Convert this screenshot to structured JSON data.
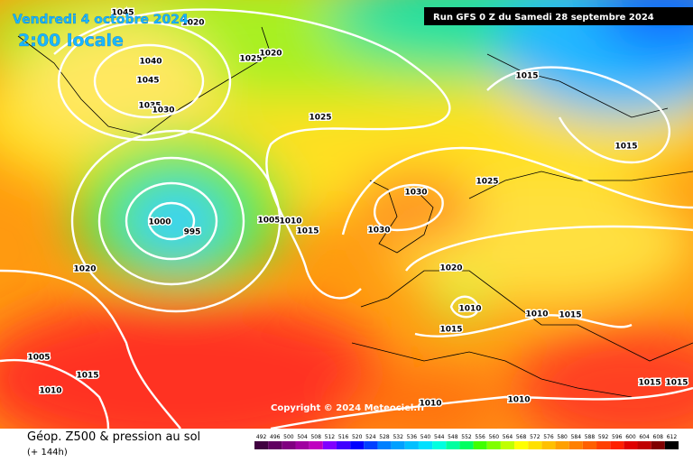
{
  "header": {
    "valid_date": "Vendredi 4 octobre 2024",
    "local_time": "2:00 locale",
    "run": "Run GFS 0 Z du Samedi 28 septembre 2024"
  },
  "isobar_labels": [
    1045,
    1020,
    1025,
    1020,
    1040,
    1045,
    1035,
    1030,
    1025,
    1015,
    1015,
    1030,
    1025,
    1000,
    995,
    1005,
    1010,
    1015,
    1030,
    1020,
    1020,
    1010,
    1010,
    1015,
    1015,
    1005,
    1015,
    1010,
    1010,
    1010,
    1015,
    1015
  ],
  "copyright": "Copyright © 2024 Meteociel.fr",
  "footer": {
    "title": "Géop. Z500 & pression au sol",
    "lead": "(+ 144h)"
  },
  "legend": {
    "labels": [
      492,
      496,
      500,
      504,
      508,
      512,
      516,
      520,
      524,
      528,
      532,
      536,
      540,
      544,
      548,
      552,
      556,
      560,
      564,
      568,
      572,
      576,
      580,
      584,
      588,
      592,
      596,
      600,
      604,
      608,
      612
    ],
    "colors": [
      "#400040",
      "#600060",
      "#800080",
      "#a000a0",
      "#c000c0",
      "#8000ff",
      "#4000ff",
      "#0000ff",
      "#0040ff",
      "#0080ff",
      "#00a0ff",
      "#00c0ff",
      "#00e0ff",
      "#00ffe0",
      "#00ffa0",
      "#00ff60",
      "#40ff00",
      "#80ff00",
      "#c0ff00",
      "#ffff00",
      "#ffe000",
      "#ffc000",
      "#ffa000",
      "#ff8000",
      "#ff6000",
      "#ff4000",
      "#ff2000",
      "#e00000",
      "#c00000",
      "#800000",
      "#000000"
    ]
  }
}
